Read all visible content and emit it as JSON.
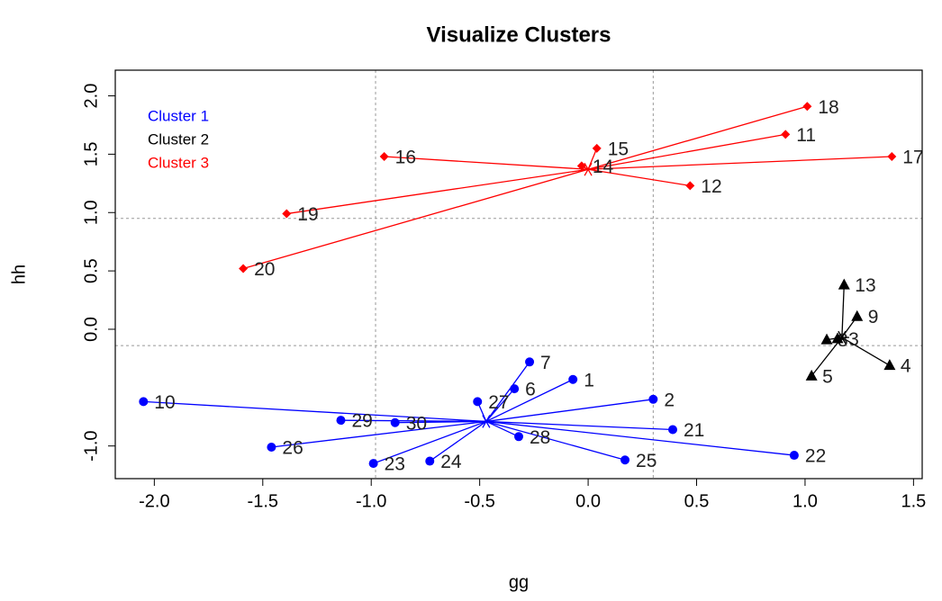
{
  "chart_data": {
    "type": "cluster-scatter",
    "title": "Visualize Clusters",
    "x_label": "gg",
    "y_label": "hh",
    "xlim": [
      -2.18,
      1.54
    ],
    "ylim": [
      -1.28,
      2.22
    ],
    "xticks": [
      {
        "value": -2,
        "label": "-2.0"
      },
      -1.5,
      {
        "value": -1,
        "label": "-1.0"
      },
      -0.5,
      {
        "value": 0,
        "label": "0.0"
      },
      0.5,
      {
        "value": 1,
        "label": "1.0"
      },
      1.5
    ],
    "yticks": [
      {
        "value": -1,
        "label": "-1.0"
      },
      {
        "value": 0,
        "label": "0.0"
      },
      0.5,
      {
        "value": 1,
        "label": "1.0"
      },
      1.5,
      {
        "value": 2,
        "label": "2.0"
      }
    ],
    "dashed_x": [
      -0.98,
      0.3
    ],
    "dashed_y": [
      0.95,
      -0.14
    ],
    "legend": "top-left",
    "series": [
      {
        "name": "Cluster 1",
        "color": "#0000ff",
        "marker": "circle",
        "labels": [
          "1",
          "2",
          "6",
          "7",
          "10",
          "21",
          "22",
          "23",
          "24",
          "25",
          "26",
          "27",
          "28",
          "29",
          "30"
        ],
        "x": [
          -0.07,
          0.3,
          -0.34,
          -0.27,
          -2.05,
          0.39,
          0.95,
          -0.99,
          -0.73,
          0.17,
          -1.46,
          -0.51,
          -0.32,
          -1.14,
          -0.89
        ],
        "y": [
          -0.43,
          -0.6,
          -0.51,
          -0.28,
          -0.62,
          -0.86,
          -1.08,
          -1.15,
          -1.13,
          -1.12,
          -1.01,
          -0.62,
          -0.92,
          -0.78,
          -0.8
        ],
        "center": {
          "x": -0.47,
          "y": -0.79
        }
      },
      {
        "name": "Cluster 2",
        "color": "#000000",
        "marker": "triangle",
        "labels": [
          "13",
          "9",
          "4",
          "5",
          "8",
          "3"
        ],
        "x": [
          1.18,
          1.24,
          1.39,
          1.03,
          1.1,
          1.15
        ],
        "y": [
          0.38,
          0.11,
          -0.31,
          -0.4,
          -0.09,
          -0.08
        ],
        "center": {
          "x": 1.17,
          "y": -0.07
        }
      },
      {
        "name": "Cluster 3",
        "color": "#ff0000",
        "marker": "diamond",
        "labels": [
          "17",
          "18",
          "11",
          "15",
          "14",
          "12",
          "16",
          "19",
          "20"
        ],
        "x": [
          1.4,
          1.01,
          0.91,
          0.04,
          -0.03,
          0.47,
          -0.94,
          -1.39,
          -1.59
        ],
        "y": [
          1.48,
          1.91,
          1.67,
          1.55,
          1.4,
          1.23,
          1.48,
          0.99,
          0.52
        ],
        "center": {
          "x": 0.0,
          "y": 1.37
        }
      }
    ]
  }
}
